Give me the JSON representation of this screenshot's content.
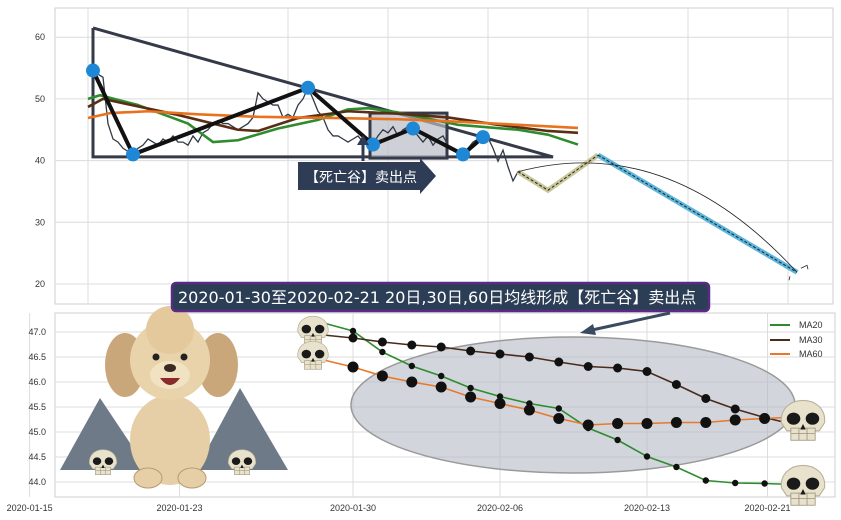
{
  "chart_data": [
    {
      "type": "line",
      "title": "",
      "xlabel": "",
      "ylabel": "",
      "ylim": [
        16,
        65
      ],
      "y_ticks": [
        "20",
        "30",
        "40",
        "50",
        "60"
      ],
      "grid": true,
      "series": [
        {
          "role": "price",
          "color": "#333a44",
          "values": [
            54.6,
            54,
            53.5,
            46,
            43.5,
            43,
            42,
            41.5,
            41,
            42,
            42.5,
            43.5,
            43,
            42.5,
            43.5,
            43,
            44,
            43,
            43,
            42.5,
            44,
            43,
            44.5,
            45,
            46,
            46.5,
            46,
            46,
            45.5,
            45,
            45.5,
            46,
            47,
            51,
            50,
            49.5,
            49,
            49,
            47,
            47.5,
            47,
            49,
            50,
            51.8,
            50,
            48,
            47,
            45,
            44,
            44,
            43.5,
            43,
            43.5,
            44,
            43,
            42.5,
            42.6,
            44,
            45,
            44.5,
            45.5,
            44,
            45,
            45.5,
            45,
            44,
            43,
            44,
            42.5,
            43.5,
            44,
            42.5,
            42,
            41.5,
            41,
            42,
            43,
            43.5,
            43.8,
            43.7,
            42,
            39.9,
            41.7,
            39,
            36.7,
            38.2
          ]
        },
        {
          "role": "ma-green",
          "color": "#2e8b2e",
          "points": [
            [
              0,
              50
            ],
            [
              2.4,
              50.6
            ],
            [
              10,
              49
            ],
            [
              20,
              46
            ],
            [
              25,
              43
            ],
            [
              30,
              43.3
            ],
            [
              38,
              45.2
            ],
            [
              46,
              46.6
            ],
            [
              52,
              48.3
            ],
            [
              56,
              48.5
            ],
            [
              62,
              47.8
            ],
            [
              74,
              45.8
            ],
            [
              86,
              45
            ],
            [
              92,
              44.2
            ],
            [
              98,
              42.6
            ]
          ]
        },
        {
          "role": "ma-brown",
          "color": "#5a2e14",
          "points": [
            [
              0,
              48.7
            ],
            [
              3,
              50
            ],
            [
              18,
              47.4
            ],
            [
              30,
              45
            ],
            [
              34,
              44.8
            ],
            [
              42,
              46.9
            ],
            [
              52,
              48
            ],
            [
              62,
              47.6
            ],
            [
              72,
              47
            ],
            [
              82,
              45.8
            ],
            [
              92,
              44.8
            ],
            [
              98,
              44.5
            ]
          ]
        },
        {
          "role": "ma-orange",
          "color": "#e8721e",
          "points": [
            [
              0,
              46.9
            ],
            [
              4.4,
              47.7
            ],
            [
              12,
              48
            ],
            [
              22,
              47.5
            ],
            [
              34,
              47.1
            ],
            [
              50,
              46.9
            ],
            [
              62,
              46.7
            ],
            [
              74,
              46.3
            ],
            [
              86,
              45.8
            ],
            [
              98,
              45.3
            ]
          ]
        }
      ],
      "zigzag": [
        [
          1,
          54.6
        ],
        [
          9,
          41
        ],
        [
          44,
          51.8
        ],
        [
          57,
          42.6
        ],
        [
          65,
          45.2
        ],
        [
          75,
          41
        ],
        [
          79,
          43.8
        ]
      ],
      "triangle": [
        [
          1,
          61.5
        ],
        [
          1,
          40.6
        ],
        [
          93,
          40.6
        ]
      ],
      "highlight_box": {
        "x": [
          56.4,
          71.8
        ],
        "y": [
          40.4,
          47.7
        ]
      },
      "projection": {
        "down_up": [
          [
            86,
            38.2
          ],
          [
            92,
            35.2
          ],
          [
            102,
            40.9
          ]
        ],
        "drop": [
          [
            102,
            40.9
          ],
          [
            141.8,
            21.9
          ]
        ]
      },
      "annotation": "【死亡谷】卖出点",
      "colors": {
        "pivot": "#1e88d6",
        "zigzag": "#111111",
        "triangle": "#343a48",
        "drop": "#5bb5dc",
        "down_up": "#c9c79a"
      }
    },
    {
      "type": "line",
      "title": "",
      "xlabel": "",
      "ylabel": "",
      "ylim": [
        43.85,
        47.35
      ],
      "y_ticks": [
        "44.0",
        "44.5",
        "45.0",
        "45.5",
        "46.0",
        "46.5",
        "47.0"
      ],
      "x_ticks": [
        "2020-01-15",
        "2020-01-23",
        "2020-01-30",
        "2020-02-06",
        "2020-02-13",
        "2020-02-21"
      ],
      "grid": true,
      "legend": "top-right",
      "series": [
        {
          "name": "MA20",
          "color": "#2e8b2e",
          "values": [
            47.18,
            47.02,
            46.6,
            46.32,
            46.12,
            45.88,
            45.71,
            45.57,
            45.47,
            45.08,
            44.84,
            44.51,
            44.3,
            44.03,
            43.98,
            43.97,
            43.95
          ]
        },
        {
          "name": "MA30",
          "color": "#4a2a1c",
          "values": [
            46.94,
            46.88,
            46.8,
            46.74,
            46.7,
            46.62,
            46.56,
            46.5,
            46.4,
            46.31,
            46.28,
            46.21,
            45.95,
            45.67,
            45.46,
            45.29,
            45.15
          ]
        },
        {
          "name": "MA60",
          "color": "#e8792a",
          "values": [
            46.44,
            46.3,
            46.12,
            46.0,
            45.9,
            45.7,
            45.57,
            45.44,
            45.27,
            45.14,
            45.17,
            45.17,
            45.19,
            45.19,
            45.24,
            45.27,
            45.3
          ]
        }
      ]
    }
  ],
  "annotation_title": "2020-01-30至2020-02-21 20日,30日,60日均线形成【死亡谷】卖出点"
}
